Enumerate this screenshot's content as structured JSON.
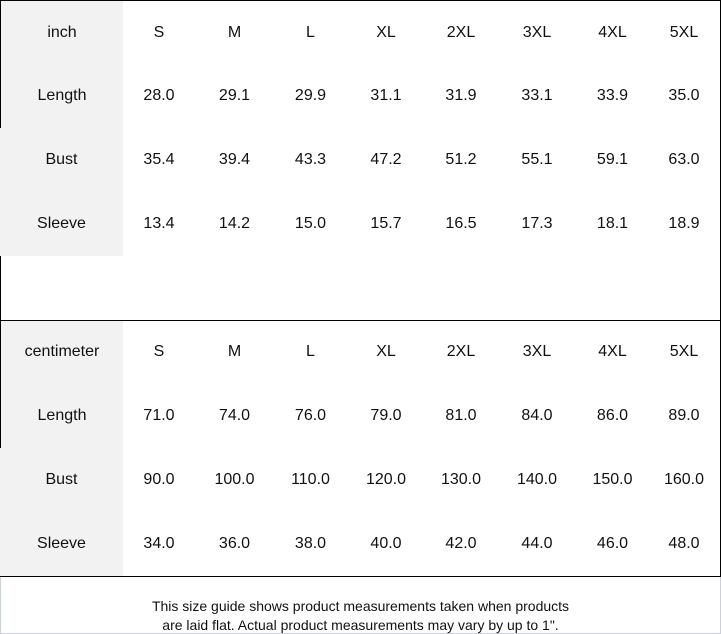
{
  "sizes": [
    "S",
    "M",
    "L",
    "XL",
    "2XL",
    "3XL",
    "4XL",
    "5XL"
  ],
  "tables": [
    {
      "unit": "inch",
      "rows": [
        {
          "label": "Length",
          "values": [
            "28.0",
            "29.1",
            "29.9",
            "31.1",
            "31.9",
            "33.1",
            "33.9",
            "35.0"
          ]
        },
        {
          "label": "Bust",
          "values": [
            "35.4",
            "39.4",
            "43.3",
            "47.2",
            "51.2",
            "55.1",
            "59.1",
            "63.0"
          ]
        },
        {
          "label": "Sleeve",
          "values": [
            "13.4",
            "14.2",
            "15.0",
            "15.7",
            "16.5",
            "17.3",
            "18.1",
            "18.9"
          ]
        }
      ]
    },
    {
      "unit": "centimeter",
      "rows": [
        {
          "label": "Length",
          "values": [
            "71.0",
            "74.0",
            "76.0",
            "79.0",
            "81.0",
            "84.0",
            "86.0",
            "89.0"
          ]
        },
        {
          "label": "Bust",
          "values": [
            "90.0",
            "100.0",
            "110.0",
            "120.0",
            "130.0",
            "140.0",
            "150.0",
            "160.0"
          ]
        },
        {
          "label": "Sleeve",
          "values": [
            "34.0",
            "36.0",
            "38.0",
            "40.0",
            "42.0",
            "44.0",
            "46.0",
            "48.0"
          ]
        }
      ]
    }
  ],
  "footer": {
    "line1": "This size guide shows product measurements taken when products",
    "line2": "are laid flat. Actual product measurements may vary by up to 1\"."
  }
}
